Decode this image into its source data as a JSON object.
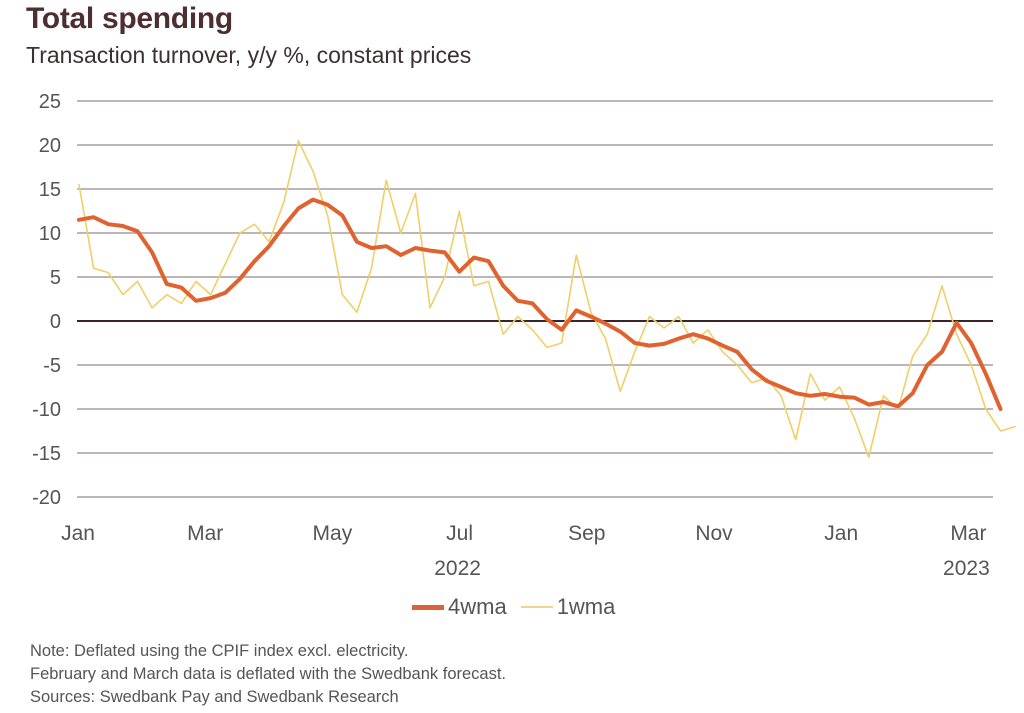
{
  "header": {
    "title": "Total spending",
    "subtitle": "Transaction turnover, y/y %, constant prices"
  },
  "legend": [
    {
      "label": "4wma",
      "color": "#e0622f"
    },
    {
      "label": "1wma",
      "color": "#f0cf68"
    }
  ],
  "notes": [
    "Note: Deflated using the CPIF index excl. electricity.",
    "February and March data is deflated with the Swedbank forecast.",
    "Sources: Swedbank Pay and Swedbank Research"
  ],
  "chart_data": {
    "type": "line",
    "title": "Total spending",
    "subtitle": "Transaction turnover, y/y %, constant prices",
    "xlabel": "",
    "ylabel": "",
    "ylim": [
      -20,
      25
    ],
    "yticks": [
      "25",
      "20",
      "15",
      "10",
      "5",
      "0",
      "-5",
      "-10",
      "-15",
      "-20"
    ],
    "ytick_values": [
      25,
      20,
      15,
      10,
      5,
      0,
      -5,
      -10,
      -15,
      -20
    ],
    "xticks": [
      {
        "label": "Jan",
        "month_index": 0
      },
      {
        "label": "Mar",
        "month_index": 2
      },
      {
        "label": "May",
        "month_index": 4
      },
      {
        "label": "Jul",
        "month_index": 6
      },
      {
        "label": "Sep",
        "month_index": 8
      },
      {
        "label": "Nov",
        "month_index": 10
      },
      {
        "label": "Jan",
        "month_index": 12
      },
      {
        "label": "Mar",
        "month_index": 14
      }
    ],
    "year_labels": [
      {
        "label": "2022",
        "month_index": 6
      },
      {
        "label": "2023",
        "month_index": 14
      }
    ],
    "grid": true,
    "zero_line": true,
    "legend_position": "bottom-center",
    "x_unit": "weeks since start of Jan 2022",
    "series": [
      {
        "name": "4wma",
        "color": "#e0622f",
        "values": [
          11.5,
          11.8,
          11.0,
          10.8,
          10.2,
          7.8,
          4.2,
          3.8,
          2.3,
          2.6,
          3.2,
          4.8,
          6.8,
          8.5,
          10.8,
          12.8,
          13.8,
          13.2,
          12.0,
          9.0,
          8.3,
          8.5,
          7.5,
          8.3,
          8.0,
          7.8,
          5.6,
          7.2,
          6.8,
          4.0,
          2.3,
          2.0,
          0.2,
          -1.0,
          1.2,
          0.5,
          -0.3,
          -1.2,
          -2.5,
          -2.8,
          -2.6,
          -2.0,
          -1.5,
          -2.0,
          -2.8,
          -3.5,
          -5.5,
          -6.8,
          -7.5,
          -8.2,
          -8.5,
          -8.3,
          -8.6,
          -8.7,
          -9.5,
          -9.2,
          -9.7,
          -8.2,
          -5.0,
          -3.5,
          -0.2,
          -2.5,
          -6.0,
          -10.0
        ]
      },
      {
        "name": "1wma",
        "color": "#f0cf68",
        "values": [
          15.5,
          6.0,
          5.5,
          3.0,
          4.5,
          1.5,
          3.0,
          2.0,
          4.5,
          3.0,
          6.5,
          10.0,
          11.0,
          9.0,
          13.5,
          20.5,
          17.0,
          12.0,
          3.0,
          1.0,
          6.0,
          16.0,
          10.0,
          14.5,
          1.5,
          5.0,
          12.5,
          4.0,
          4.5,
          -1.5,
          0.5,
          -1.0,
          -3.0,
          -2.5,
          7.5,
          1.0,
          -2.0,
          -8.0,
          -3.5,
          0.5,
          -0.8,
          0.5,
          -2.5,
          -1.0,
          -3.5,
          -5.0,
          -7.0,
          -6.5,
          -8.5,
          -13.5,
          -6.0,
          -9.0,
          -7.5,
          -11.0,
          -15.5,
          -8.5,
          -10.0,
          -4.0,
          -1.5,
          4.0,
          -1.5,
          -5.0,
          -10.0,
          -12.5,
          -12.0
        ]
      }
    ]
  }
}
